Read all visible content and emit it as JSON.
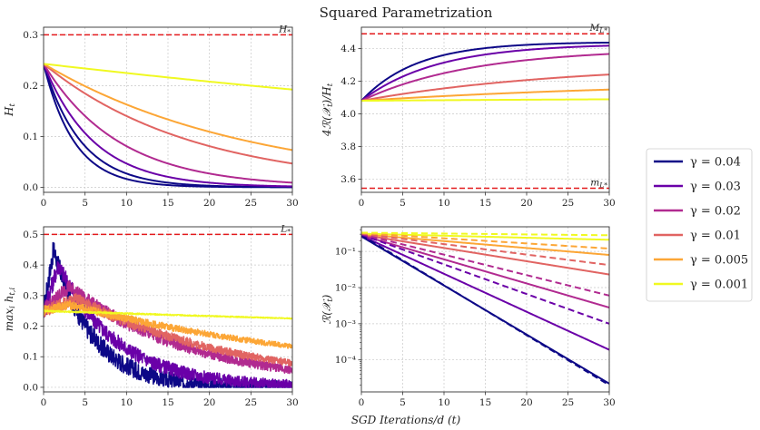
{
  "figure": {
    "title": "Squared Parametrization",
    "xlabel_shared": "SGD Iterations/d (t)"
  },
  "legend": {
    "entries": [
      {
        "label": "γ = 0.04",
        "color": "#0d0887"
      },
      {
        "label": "γ = 0.03",
        "color": "#6a00a8"
      },
      {
        "label": "γ = 0.02",
        "color": "#b12a90"
      },
      {
        "label": "γ = 0.01",
        "color": "#e16462"
      },
      {
        "label": "γ = 0.005",
        "color": "#fca636"
      },
      {
        "label": "γ = 0.001",
        "color": "#f0f921"
      }
    ]
  },
  "chart_data": [
    {
      "type": "line",
      "ylabel": "H_t",
      "xlim": [
        0,
        30
      ],
      "ylim": [
        -0.01,
        0.315
      ],
      "xticks": [
        0,
        5,
        10,
        15,
        20,
        25,
        30
      ],
      "yticks": [
        0.0,
        0.1,
        0.2,
        0.3
      ],
      "ytick_labels": [
        "0.0",
        "0.1",
        "0.2",
        "0.3"
      ],
      "grid": true,
      "hline": {
        "y": 0.3,
        "label": "H_*",
        "color": "#e31a1c",
        "style": "dashed"
      },
      "series": [
        {
          "gamma": 0.04,
          "start": 0.243,
          "rate": 0.27,
          "color": "#0d0887"
        },
        {
          "gamma": 0.04,
          "start": 0.243,
          "rate": 0.22,
          "color": "#0d0887"
        },
        {
          "gamma": 0.03,
          "start": 0.243,
          "rate": 0.165,
          "color": "#6a00a8"
        },
        {
          "gamma": 0.02,
          "start": 0.243,
          "rate": 0.11,
          "color": "#b12a90"
        },
        {
          "gamma": 0.01,
          "start": 0.243,
          "rate": 0.055,
          "color": "#e16462"
        },
        {
          "gamma": 0.005,
          "start": 0.243,
          "rate": 0.04,
          "color": "#fca636"
        },
        {
          "gamma": 0.001,
          "start": 0.243,
          "rate": 0.0078,
          "color": "#f0f921"
        }
      ]
    },
    {
      "type": "line",
      "ylabel": "4R(X_t)/H_t",
      "xlim": [
        0,
        30
      ],
      "ylim": [
        3.52,
        4.53
      ],
      "xticks": [
        0,
        5,
        10,
        15,
        20,
        25,
        30
      ],
      "yticks": [
        3.6,
        3.8,
        4.0,
        4.2,
        4.4
      ],
      "ytick_labels": [
        "3.6",
        "3.8",
        "4.0",
        "4.2",
        "4.4"
      ],
      "grid": true,
      "hlines": [
        {
          "y": 4.49,
          "label": "M_{L_*}",
          "color": "#e31a1c",
          "style": "dashed"
        },
        {
          "y": 3.545,
          "label": "m_{L_*}",
          "color": "#e31a1c",
          "style": "dashed"
        }
      ],
      "series": [
        {
          "gamma": 0.04,
          "start": 4.08,
          "end": 4.44,
          "k": 0.15,
          "color": "#0d0887"
        },
        {
          "gamma": 0.03,
          "start": 4.08,
          "end": 4.43,
          "k": 0.11,
          "color": "#6a00a8"
        },
        {
          "gamma": 0.02,
          "start": 4.08,
          "end": 4.4,
          "k": 0.075,
          "color": "#b12a90"
        },
        {
          "gamma": 0.01,
          "start": 4.08,
          "end": 4.31,
          "k": 0.04,
          "color": "#e16462"
        },
        {
          "gamma": 0.005,
          "start": 4.08,
          "end": 4.21,
          "k": 0.025,
          "color": "#fca636"
        },
        {
          "gamma": 0.001,
          "start": 4.08,
          "end": 4.1,
          "k": 0.02,
          "color": "#f0f921"
        }
      ]
    },
    {
      "type": "line",
      "ylabel": "max_i h_{t,i}",
      "xlim": [
        0,
        30
      ],
      "ylim": [
        -0.015,
        0.525
      ],
      "xticks": [
        0,
        5,
        10,
        15,
        20,
        25,
        30
      ],
      "yticks": [
        0.0,
        0.1,
        0.2,
        0.3,
        0.4,
        0.5
      ],
      "ytick_labels": [
        "0.0",
        "0.1",
        "0.2",
        "0.3",
        "0.4",
        "0.5"
      ],
      "grid": true,
      "hline": {
        "y": 0.5,
        "label": "L_*",
        "color": "#e31a1c",
        "style": "dashed"
      },
      "series": [
        {
          "gamma": 0.04,
          "peak": 0.45,
          "peak_t": 1.2,
          "rate": 0.21,
          "noise": 0.035,
          "color": "#0d0887"
        },
        {
          "gamma": 0.03,
          "peak": 0.4,
          "peak_t": 1.8,
          "rate": 0.14,
          "noise": 0.03,
          "color": "#6a00a8"
        },
        {
          "gamma": 0.02,
          "peak": 0.33,
          "peak_t": 3.0,
          "rate": 0.065,
          "noise": 0.025,
          "color": "#b12a90"
        },
        {
          "gamma": 0.01,
          "peak": 0.29,
          "peak_t": 4.0,
          "rate": 0.05,
          "noise": 0.02,
          "color": "#e16462"
        },
        {
          "gamma": 0.005,
          "peak": 0.27,
          "peak_t": 3.0,
          "rate": 0.026,
          "noise": 0.015,
          "color": "#fca636"
        },
        {
          "gamma": 0.001,
          "peak": 0.25,
          "peak_t": 0.0,
          "rate": 0.0035,
          "noise": 0.003,
          "color": "#f0f921"
        }
      ]
    },
    {
      "type": "line",
      "ylabel": "R(X_t)",
      "yscale": "log",
      "xlim": [
        0,
        30
      ],
      "ylim": [
        1.3e-05,
        0.48
      ],
      "xticks": [
        0,
        5,
        10,
        15,
        20,
        25,
        30
      ],
      "yticks": [
        0.0001,
        0.001,
        0.01,
        0.1
      ],
      "ytick_labels": [
        "10⁻⁴",
        "10⁻³",
        "10⁻²",
        "10⁻¹"
      ],
      "grid": true,
      "series": [
        {
          "gamma": 0.04,
          "start": 0.26,
          "end": 2.2e-05,
          "style": "solid",
          "color": "#0d0887"
        },
        {
          "gamma": 0.03,
          "start": 0.27,
          "end": 0.00019,
          "style": "solid",
          "color": "#6a00a8"
        },
        {
          "gamma": 0.02,
          "start": 0.28,
          "end": 0.0028,
          "style": "solid",
          "color": "#b12a90"
        },
        {
          "gamma": 0.01,
          "start": 0.29,
          "end": 0.023,
          "style": "solid",
          "color": "#e16462"
        },
        {
          "gamma": 0.005,
          "start": 0.3,
          "end": 0.08,
          "style": "solid",
          "color": "#fca636"
        },
        {
          "gamma": 0.001,
          "start": 0.31,
          "end": 0.21,
          "style": "solid",
          "color": "#f0f921"
        },
        {
          "gamma": 0.04,
          "start": 0.28,
          "end": 2e-05,
          "style": "dashed",
          "color": "#0d0887"
        },
        {
          "gamma": 0.03,
          "start": 0.29,
          "end": 0.001,
          "style": "dashed",
          "color": "#6a00a8"
        },
        {
          "gamma": 0.02,
          "start": 0.3,
          "end": 0.006,
          "style": "dashed",
          "color": "#b12a90"
        },
        {
          "gamma": 0.01,
          "start": 0.31,
          "end": 0.042,
          "style": "dashed",
          "color": "#e16462"
        },
        {
          "gamma": 0.005,
          "start": 0.32,
          "end": 0.12,
          "style": "dashed",
          "color": "#fca636"
        },
        {
          "gamma": 0.001,
          "start": 0.33,
          "end": 0.28,
          "style": "dashed",
          "color": "#f0f921"
        }
      ]
    }
  ]
}
